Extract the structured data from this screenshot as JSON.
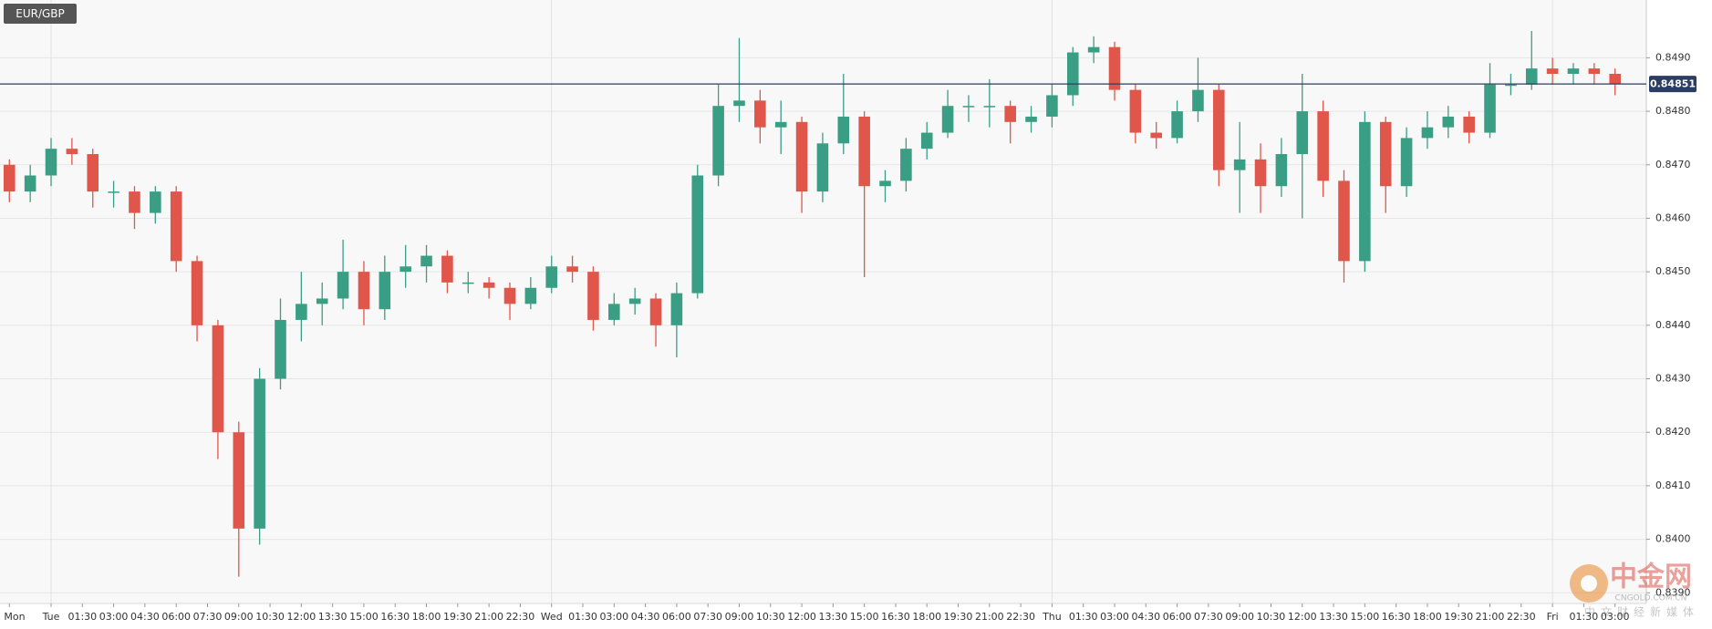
{
  "chart_data": {
    "type": "candlestick",
    "title": "EUR/GBP",
    "x": [
      -2,
      -1,
      0,
      1,
      2,
      3,
      4,
      5,
      6,
      7,
      8,
      9,
      10,
      11,
      12,
      13,
      14,
      15,
      16,
      17,
      18,
      19,
      20,
      21,
      22,
      23,
      24,
      25,
      26,
      27,
      28,
      29,
      30,
      31,
      32,
      33,
      34,
      35,
      36,
      37,
      38,
      39,
      40,
      41,
      42,
      43,
      44,
      45,
      46,
      47,
      48,
      49,
      50,
      51,
      52,
      53,
      54,
      55,
      56,
      57,
      58,
      59,
      60,
      61,
      62,
      63,
      64,
      65,
      66,
      67,
      68,
      69,
      70,
      71,
      72,
      73,
      74,
      75
    ],
    "open": [
      0.847,
      0.8465,
      0.8468,
      0.8473,
      0.8472,
      0.8465,
      0.8465,
      0.8461,
      0.8465,
      0.8452,
      0.844,
      0.842,
      0.8402,
      0.843,
      0.8441,
      0.8444,
      0.8445,
      0.845,
      0.8443,
      0.845,
      0.8451,
      0.8453,
      0.8448,
      0.8448,
      0.8447,
      0.8444,
      0.8447,
      0.8451,
      0.845,
      0.8441,
      0.8444,
      0.8445,
      0.844,
      0.8446,
      0.8468,
      0.8481,
      0.8482,
      0.8477,
      0.8478,
      0.8465,
      0.8474,
      0.8479,
      0.8466,
      0.8467,
      0.8473,
      0.8476,
      0.8481,
      0.8481,
      0.8481,
      0.8478,
      0.8479,
      0.8483,
      0.8491,
      0.8492,
      0.8484,
      0.8476,
      0.8475,
      0.848,
      0.8484,
      0.8469,
      0.8471,
      0.8466,
      0.8472,
      0.848,
      0.8467,
      0.8452,
      0.8478,
      0.8466,
      0.8475,
      0.8477,
      0.8479,
      0.8476,
      0.8485,
      0.8485,
      0.8488,
      0.8487,
      0.8488,
      0.8487
    ],
    "high": [
      0.8471,
      0.847,
      0.8475,
      0.8475,
      0.8473,
      0.8467,
      0.8466,
      0.8466,
      0.8466,
      0.8453,
      0.8441,
      0.8422,
      0.8432,
      0.8445,
      0.845,
      0.8448,
      0.8456,
      0.8452,
      0.8453,
      0.8455,
      0.8455,
      0.8454,
      0.845,
      0.8449,
      0.8448,
      0.8449,
      0.8453,
      0.8453,
      0.8451,
      0.8446,
      0.8447,
      0.8446,
      0.8448,
      0.847,
      0.8485,
      0.84937,
      0.8484,
      0.8482,
      0.8479,
      0.8476,
      0.8487,
      0.848,
      0.8469,
      0.8475,
      0.8478,
      0.8484,
      0.8483,
      0.8486,
      0.8482,
      0.8481,
      0.8485,
      0.8492,
      0.8494,
      0.8493,
      0.8485,
      0.8478,
      0.8482,
      0.849,
      0.8485,
      0.8478,
      0.8474,
      0.8475,
      0.8487,
      0.8482,
      0.8469,
      0.848,
      0.8479,
      0.8477,
      0.848,
      0.8481,
      0.848,
      0.8489,
      0.8487,
      0.8495,
      0.849,
      0.8489,
      0.8489,
      0.8488
    ],
    "low": [
      0.8463,
      0.8463,
      0.8466,
      0.847,
      0.8462,
      0.8462,
      0.8458,
      0.8459,
      0.845,
      0.8437,
      0.8415,
      0.8393,
      0.8399,
      0.8428,
      0.8437,
      0.844,
      0.8443,
      0.844,
      0.8441,
      0.8447,
      0.8448,
      0.8446,
      0.8446,
      0.8445,
      0.8441,
      0.8443,
      0.8446,
      0.8448,
      0.8439,
      0.844,
      0.8442,
      0.8436,
      0.8434,
      0.8445,
      0.8466,
      0.8478,
      0.8474,
      0.8472,
      0.8461,
      0.8463,
      0.8472,
      0.8449,
      0.8463,
      0.8465,
      0.8471,
      0.8475,
      0.8478,
      0.8477,
      0.8474,
      0.8476,
      0.8477,
      0.8481,
      0.8489,
      0.8482,
      0.8474,
      0.8473,
      0.8474,
      0.8478,
      0.8466,
      0.8461,
      0.8461,
      0.8464,
      0.846,
      0.8464,
      0.8448,
      0.845,
      0.8461,
      0.8464,
      0.8473,
      0.8475,
      0.8474,
      0.8475,
      0.8483,
      0.8484,
      0.8485,
      0.8485,
      0.8485,
      0.8483
    ],
    "close": [
      0.8465,
      0.8468,
      0.8473,
      0.8472,
      0.8465,
      0.8465,
      0.8461,
      0.8465,
      0.8452,
      0.844,
      0.842,
      0.8402,
      0.843,
      0.8441,
      0.8444,
      0.8445,
      0.845,
      0.8443,
      0.845,
      0.8451,
      0.8453,
      0.8448,
      0.8448,
      0.8447,
      0.8444,
      0.8447,
      0.8451,
      0.845,
      0.8441,
      0.8444,
      0.8445,
      0.844,
      0.8446,
      0.8468,
      0.8481,
      0.8482,
      0.8477,
      0.8478,
      0.8465,
      0.8474,
      0.8479,
      0.8466,
      0.8467,
      0.8473,
      0.8476,
      0.8481,
      0.8481,
      0.8481,
      0.8478,
      0.8479,
      0.8483,
      0.8491,
      0.8492,
      0.8484,
      0.8476,
      0.8475,
      0.848,
      0.8484,
      0.8469,
      0.8471,
      0.8466,
      0.8472,
      0.848,
      0.8467,
      0.8452,
      0.8478,
      0.8466,
      0.8475,
      0.8477,
      0.8479,
      0.8476,
      0.8485,
      0.8485,
      0.8488,
      0.8487,
      0.8488,
      0.8487,
      0.84851
    ],
    "up_color": "#3a9e85",
    "down_color": "#e0564a",
    "price_line_color": "#2b3d63",
    "xlim": [
      -2.45,
      76.5
    ],
    "ylim": [
      0.8388,
      0.85008
    ],
    "xticks": [
      {
        "value": -2,
        "label": "Mon"
      },
      {
        "value": 0,
        "label": "Tue"
      },
      {
        "value": 1.5,
        "label": "01:30"
      },
      {
        "value": 3,
        "label": "03:00"
      },
      {
        "value": 4.5,
        "label": "04:30"
      },
      {
        "value": 6,
        "label": "06:00"
      },
      {
        "value": 7.5,
        "label": "07:30"
      },
      {
        "value": 9,
        "label": "09:00"
      },
      {
        "value": 10.5,
        "label": "10:30"
      },
      {
        "value": 12,
        "label": "12:00"
      },
      {
        "value": 13.5,
        "label": "13:30"
      },
      {
        "value": 15,
        "label": "15:00"
      },
      {
        "value": 16.5,
        "label": "16:30"
      },
      {
        "value": 18,
        "label": "18:00"
      },
      {
        "value": 19.5,
        "label": "19:30"
      },
      {
        "value": 21,
        "label": "21:00"
      },
      {
        "value": 22.5,
        "label": "22:30"
      },
      {
        "value": 24,
        "label": "Wed"
      },
      {
        "value": 25.5,
        "label": "01:30"
      },
      {
        "value": 27,
        "label": "03:00"
      },
      {
        "value": 28.5,
        "label": "04:30"
      },
      {
        "value": 30,
        "label": "06:00"
      },
      {
        "value": 31.5,
        "label": "07:30"
      },
      {
        "value": 33,
        "label": "09:00"
      },
      {
        "value": 34.5,
        "label": "10:30"
      },
      {
        "value": 36,
        "label": "12:00"
      },
      {
        "value": 37.5,
        "label": "13:30"
      },
      {
        "value": 39,
        "label": "15:00"
      },
      {
        "value": 40.5,
        "label": "16:30"
      },
      {
        "value": 42,
        "label": "18:00"
      },
      {
        "value": 43.5,
        "label": "19:30"
      },
      {
        "value": 45,
        "label": "21:00"
      },
      {
        "value": 46.5,
        "label": "22:30"
      },
      {
        "value": 48,
        "label": "Thu"
      },
      {
        "value": 49.5,
        "label": "01:30"
      },
      {
        "value": 51,
        "label": "03:00"
      },
      {
        "value": 52.5,
        "label": "04:30"
      },
      {
        "value": 54,
        "label": "06:00"
      },
      {
        "value": 55.5,
        "label": "07:30"
      },
      {
        "value": 57,
        "label": "09:00"
      },
      {
        "value": 58.5,
        "label": "10:30"
      },
      {
        "value": 60,
        "label": "12:00"
      },
      {
        "value": 61.5,
        "label": "13:30"
      },
      {
        "value": 63,
        "label": "15:00"
      },
      {
        "value": 64.5,
        "label": "16:30"
      },
      {
        "value": 66,
        "label": "18:00"
      },
      {
        "value": 67.5,
        "label": "19:30"
      },
      {
        "value": 69,
        "label": "21:00"
      },
      {
        "value": 70.5,
        "label": "22:30"
      },
      {
        "value": 72,
        "label": "Fri"
      },
      {
        "value": 73.5,
        "label": "01:30"
      },
      {
        "value": 75,
        "label": "03:00"
      }
    ],
    "yticks": [
      {
        "value": 0.839,
        "label": "0.8390"
      },
      {
        "value": 0.84,
        "label": "0.8400"
      },
      {
        "value": 0.841,
        "label": "0.8410"
      },
      {
        "value": 0.842,
        "label": "0.8420"
      },
      {
        "value": 0.843,
        "label": "0.8430"
      },
      {
        "value": 0.844,
        "label": "0.8440"
      },
      {
        "value": 0.845,
        "label": "0.8450"
      },
      {
        "value": 0.846,
        "label": "0.8460"
      },
      {
        "value": 0.847,
        "label": "0.8470"
      },
      {
        "value": 0.848,
        "label": "0.8480"
      },
      {
        "value": 0.849,
        "label": "0.8490"
      }
    ]
  },
  "watermark": {
    "logo": "中金网",
    "domain": "CNGOLD.COM.CN",
    "tagline": "中文财经新媒体"
  }
}
